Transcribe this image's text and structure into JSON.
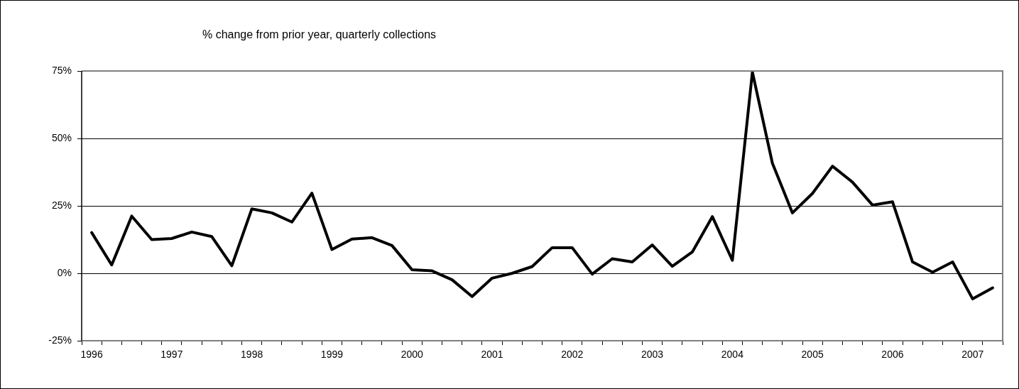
{
  "chart_data": {
    "type": "line",
    "title": "% change from prior year, quarterly collections",
    "categories": [
      "1996",
      null,
      null,
      null,
      "1997",
      null,
      null,
      null,
      "1998",
      null,
      null,
      null,
      "1999",
      null,
      null,
      null,
      "2000",
      null,
      null,
      null,
      "2001",
      null,
      null,
      null,
      "2002",
      null,
      null,
      null,
      "2003",
      null,
      null,
      null,
      "2004",
      null,
      null,
      null,
      "2005",
      null,
      null,
      null,
      "2006",
      null,
      null,
      null,
      "2007",
      null
    ],
    "series": [
      {
        "color": "#000000",
        "values": [
          15.1,
          3.1,
          21.2,
          12.5,
          12.9,
          15.3,
          13.6,
          2.8,
          23.9,
          22.4,
          19,
          29.7,
          8.8,
          12.7,
          13.2,
          10.3,
          1.3,
          0.9,
          -2.4,
          -8.6,
          -1.8,
          0,
          2.5,
          9.5,
          9.5,
          -0.3,
          5.4,
          4.2,
          10.5,
          2.6,
          7.9,
          21,
          4.8,
          74.6,
          40.8,
          22.4,
          29.6,
          39.7,
          33.8,
          25.3,
          26.5,
          4.2,
          0.4,
          4.2,
          -9.5,
          -5.4
        ]
      }
    ],
    "ylim": [
      -25,
      75
    ],
    "yticks": [
      {
        "value": -25,
        "label": "-25%"
      },
      {
        "value": 0,
        "label": "0%"
      },
      {
        "value": 25,
        "label": "25%"
      },
      {
        "value": 50,
        "label": "50%"
      },
      {
        "value": 75,
        "label": "75%"
      }
    ],
    "grid": "y",
    "legend": false,
    "marker": "none",
    "line_style": "solid"
  }
}
